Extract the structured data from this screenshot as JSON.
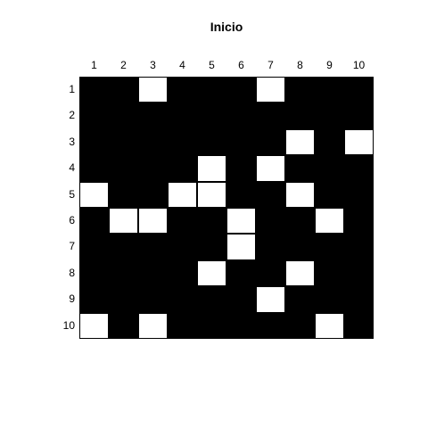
{
  "title": "Inicio",
  "columns": [
    "1",
    "2",
    "3",
    "4",
    "5",
    "6",
    "7",
    "8",
    "9",
    "10"
  ],
  "rows": [
    "1",
    "2",
    "3",
    "4",
    "5",
    "6",
    "7",
    "8",
    "9",
    "10"
  ],
  "colors": {
    "filled": "#000000",
    "empty": "#ffffff"
  },
  "grid": [
    [
      1,
      1,
      0,
      1,
      1,
      1,
      0,
      1,
      1,
      1
    ],
    [
      1,
      1,
      1,
      1,
      1,
      1,
      1,
      1,
      1,
      1
    ],
    [
      1,
      1,
      1,
      1,
      1,
      1,
      1,
      0,
      1,
      0
    ],
    [
      1,
      1,
      1,
      1,
      0,
      1,
      0,
      1,
      1,
      1
    ],
    [
      0,
      1,
      1,
      0,
      0,
      1,
      1,
      0,
      1,
      1
    ],
    [
      1,
      0,
      0,
      1,
      1,
      0,
      1,
      1,
      0,
      1
    ],
    [
      1,
      1,
      1,
      1,
      1,
      0,
      1,
      1,
      1,
      1
    ],
    [
      1,
      1,
      1,
      1,
      0,
      1,
      1,
      0,
      1,
      1
    ],
    [
      1,
      1,
      1,
      1,
      1,
      1,
      0,
      1,
      1,
      1
    ],
    [
      0,
      1,
      0,
      1,
      1,
      1,
      1,
      1,
      0,
      1
    ]
  ]
}
